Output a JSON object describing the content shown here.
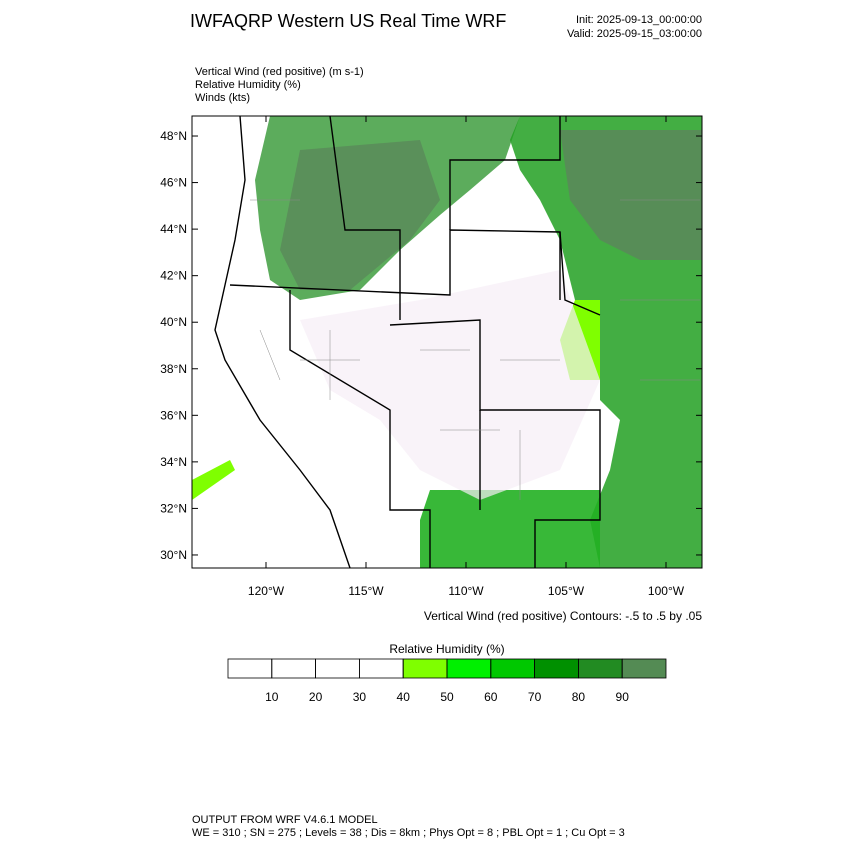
{
  "title": "IWFAQRP Western US Real Time WRF",
  "init": "Init: 2025-09-13_00:00:00",
  "valid": "Valid: 2025-09-15_03:00:00",
  "fields": [
    "Vertical Wind (red positive)   (m s-1)",
    "Relative Humidity   (%)",
    "Winds   (kts)"
  ],
  "map": {
    "latlim": [
      29.44,
      48.86
    ],
    "lonlim": [
      -123.7,
      -98.2
    ],
    "lat_ticks": [
      {
        "value": 30,
        "label": "30°N"
      },
      {
        "value": 32,
        "label": "32°N"
      },
      {
        "value": 34,
        "label": "34°N"
      },
      {
        "value": 36,
        "label": "36°N"
      },
      {
        "value": 38,
        "label": "38°N"
      },
      {
        "value": 40,
        "label": "40°N"
      },
      {
        "value": 42,
        "label": "42°N"
      },
      {
        "value": 44,
        "label": "44°N"
      },
      {
        "value": 46,
        "label": "46°N"
      },
      {
        "value": 48,
        "label": "48°N"
      }
    ],
    "lon_ticks": [
      {
        "value": -120,
        "label": "120°W"
      },
      {
        "value": -115,
        "label": "115°W"
      },
      {
        "value": -110,
        "label": "110°W"
      },
      {
        "value": -105,
        "label": "105°W"
      },
      {
        "value": -100,
        "label": "100°W"
      }
    ]
  },
  "contour_note": "Vertical Wind (red positive) Contours: -.5 to .5 by .05",
  "colorbar": {
    "title": "Relative Humidity  (%)",
    "levels": [
      10,
      20,
      30,
      40,
      50,
      60,
      70,
      80,
      90
    ],
    "colors": [
      "#ffffff",
      "#ffffff",
      "#ffffff",
      "#ffffff",
      "#7fff00",
      "#00f000",
      "#00c800",
      "#009000",
      "#228b22",
      "#548b54"
    ]
  },
  "footer": [
    "OUTPUT FROM WRF V4.6.1 MODEL",
    "WE = 310 ; SN = 275 ; Levels = 38 ; Dis = 8km ; Phys Opt = 8 ; PBL Opt = 1 ; Cu Opt = 3"
  ]
}
